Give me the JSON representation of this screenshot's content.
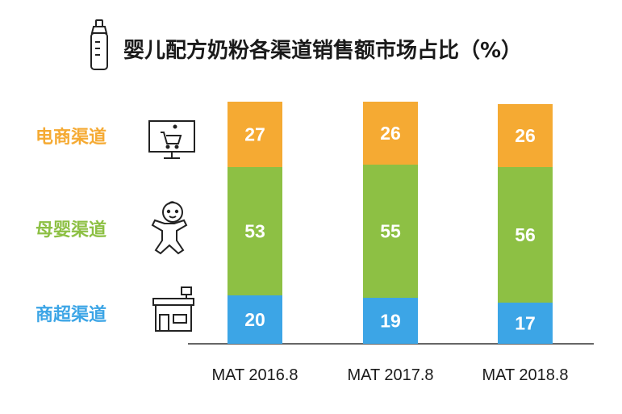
{
  "title": "婴儿配方奶粉各渠道销售额市场占比（%）",
  "icons": {
    "title": "baby-bottle-icon",
    "ecommerce": "shopping-cart-monitor-icon",
    "mother_baby": "baby-icon",
    "supermarket": "store-icon"
  },
  "colors": {
    "ecommerce": "#F5AA33",
    "mother_baby": "#8DC044",
    "supermarket": "#3CA5E6"
  },
  "chart_data": {
    "type": "bar",
    "stacked": true,
    "title": "婴儿配方奶粉各渠道销售额市场占比（%）",
    "categories": [
      "MAT 2016.8",
      "MAT 2017.8",
      "MAT 2018.8"
    ],
    "series": [
      {
        "name": "商超渠道",
        "values": [
          20,
          19,
          17
        ]
      },
      {
        "name": "母婴渠道",
        "values": [
          53,
          55,
          56
        ]
      },
      {
        "name": "电商渠道",
        "values": [
          27,
          26,
          26
        ]
      }
    ],
    "xlabel": "",
    "ylabel": "",
    "ylim": [
      0,
      100
    ],
    "grid": false,
    "legend": "left",
    "data_labels": true
  }
}
